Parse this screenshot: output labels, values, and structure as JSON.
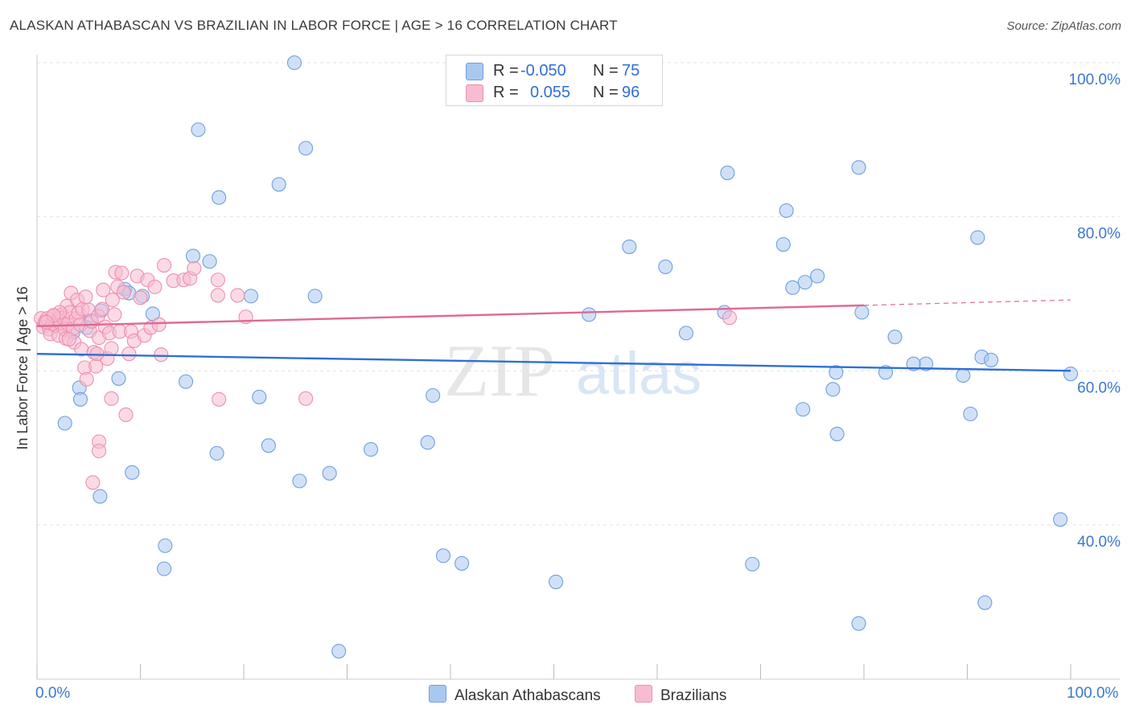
{
  "title": "ALASKAN ATHABASCAN VS BRAZILIAN IN LABOR FORCE | AGE > 16 CORRELATION CHART",
  "source": "Source: ZipAtlas.com",
  "watermark": {
    "zip": "ZIP",
    "atlas": "atlas"
  },
  "legend": {
    "rows": [
      {
        "r_label": "R =",
        "r_value": "-0.050",
        "n_label": "N =",
        "n_value": "75",
        "color": "#a9c8f0"
      },
      {
        "r_label": "R =",
        "r_value": "0.055",
        "n_label": "N =",
        "n_value": "96",
        "color": "#f7bcd0"
      }
    ]
  },
  "bottom_legend": [
    {
      "label": "Alaskan Athabascans",
      "color": "#a9c8f0"
    },
    {
      "label": "Brazilians",
      "color": "#f7bcd0"
    }
  ],
  "chart_data": {
    "type": "scatter",
    "title": "ALASKAN ATHABASCAN VS BRAZILIAN IN LABOR FORCE | AGE > 16 CORRELATION CHART",
    "xlabel": "",
    "ylabel": "In Labor Force | Age > 16",
    "xlim": [
      0,
      100
    ],
    "ylim": [
      20,
      102
    ],
    "x_tick_labels": [
      "0.0%",
      "100.0%"
    ],
    "y_ticks": [
      40,
      60,
      80,
      100
    ],
    "y_tick_labels": [
      "40.0%",
      "60.0%",
      "80.0%",
      "100.0%"
    ],
    "grid": true,
    "series": [
      {
        "name": "Alaskan Athabascans",
        "color": "#a9c8f0",
        "stroke": "#6fa0df",
        "line_color": "#2f6fd6",
        "trend": {
          "x0": 0,
          "y0": 62.2,
          "x1": 100,
          "y1": 60.0
        },
        "points": [
          [
            24.9,
            100.0
          ],
          [
            15.6,
            91.3
          ],
          [
            26.0,
            88.9
          ],
          [
            17.6,
            82.5
          ],
          [
            23.4,
            84.2
          ],
          [
            66.8,
            85.7
          ],
          [
            79.5,
            86.4
          ],
          [
            72.5,
            80.8
          ],
          [
            91.0,
            77.3
          ],
          [
            57.3,
            76.1
          ],
          [
            72.2,
            76.4
          ],
          [
            15.1,
            74.9
          ],
          [
            16.7,
            74.2
          ],
          [
            60.8,
            73.5
          ],
          [
            75.5,
            72.3
          ],
          [
            74.3,
            71.5
          ],
          [
            73.1,
            70.8
          ],
          [
            8.5,
            70.6
          ],
          [
            8.9,
            70.1
          ],
          [
            10.2,
            69.7
          ],
          [
            20.7,
            69.7
          ],
          [
            26.9,
            69.7
          ],
          [
            6.2,
            67.8
          ],
          [
            11.2,
            67.4
          ],
          [
            66.5,
            67.6
          ],
          [
            79.8,
            67.6
          ],
          [
            53.4,
            67.3
          ],
          [
            5.2,
            66.5
          ],
          [
            4.8,
            65.6
          ],
          [
            3.5,
            65.0
          ],
          [
            62.8,
            64.9
          ],
          [
            83.0,
            64.4
          ],
          [
            91.4,
            61.8
          ],
          [
            92.3,
            61.4
          ],
          [
            86.0,
            60.9
          ],
          [
            84.8,
            60.9
          ],
          [
            77.3,
            59.8
          ],
          [
            82.1,
            59.8
          ],
          [
            89.6,
            59.4
          ],
          [
            100.0,
            59.6
          ],
          [
            7.9,
            59.0
          ],
          [
            14.4,
            58.6
          ],
          [
            4.1,
            57.8
          ],
          [
            77.0,
            57.6
          ],
          [
            4.2,
            56.3
          ],
          [
            21.5,
            56.6
          ],
          [
            38.3,
            56.8
          ],
          [
            74.1,
            55.0
          ],
          [
            90.3,
            54.4
          ],
          [
            2.7,
            53.2
          ],
          [
            77.4,
            51.8
          ],
          [
            37.8,
            50.7
          ],
          [
            22.4,
            50.3
          ],
          [
            32.3,
            49.8
          ],
          [
            17.4,
            49.3
          ],
          [
            9.2,
            46.8
          ],
          [
            28.3,
            46.7
          ],
          [
            25.4,
            45.7
          ],
          [
            6.1,
            43.7
          ],
          [
            99.0,
            40.7
          ],
          [
            12.4,
            37.3
          ],
          [
            39.3,
            36.0
          ],
          [
            41.1,
            35.0
          ],
          [
            69.2,
            34.9
          ],
          [
            12.3,
            34.3
          ],
          [
            50.2,
            32.6
          ],
          [
            91.7,
            29.9
          ],
          [
            79.5,
            27.2
          ],
          [
            29.2,
            23.6
          ]
        ]
      },
      {
        "name": "Brazilians",
        "color": "#f7bcd0",
        "stroke": "#ec8fb0",
        "line_color": "#e0698f",
        "trend": {
          "x0": 0,
          "y0": 65.8,
          "x1": 80,
          "y1": 68.5
        },
        "trend_dashed": {
          "x0": 80,
          "y0": 68.5,
          "x1": 100,
          "y1": 69.2
        },
        "points": [
          [
            0.4,
            66.8
          ],
          [
            0.6,
            65.7
          ],
          [
            0.8,
            66.4
          ],
          [
            1.0,
            66.8
          ],
          [
            1.2,
            65.4
          ],
          [
            1.3,
            64.8
          ],
          [
            1.5,
            66.1
          ],
          [
            1.7,
            67.1
          ],
          [
            1.8,
            65.9
          ],
          [
            2.0,
            66.6
          ],
          [
            2.1,
            64.6
          ],
          [
            2.3,
            66.2
          ],
          [
            2.4,
            67.3
          ],
          [
            2.5,
            66.9
          ],
          [
            2.7,
            65.4
          ],
          [
            2.8,
            64.2
          ],
          [
            2.9,
            68.4
          ],
          [
            3.0,
            66.1
          ],
          [
            3.2,
            67.6
          ],
          [
            3.3,
            70.1
          ],
          [
            3.5,
            65.5
          ],
          [
            3.6,
            63.7
          ],
          [
            3.8,
            66.8
          ],
          [
            3.9,
            69.2
          ],
          [
            4.0,
            67.5
          ],
          [
            4.2,
            66.0
          ],
          [
            4.3,
            62.8
          ],
          [
            4.4,
            68.0
          ],
          [
            4.6,
            60.4
          ],
          [
            4.7,
            69.6
          ],
          [
            4.8,
            58.9
          ],
          [
            5.0,
            67.9
          ],
          [
            5.1,
            65.2
          ],
          [
            5.3,
            66.4
          ],
          [
            5.5,
            62.4
          ],
          [
            5.7,
            60.6
          ],
          [
            5.9,
            67.1
          ],
          [
            6.0,
            64.3
          ],
          [
            6.3,
            68.0
          ],
          [
            6.4,
            70.5
          ],
          [
            6.6,
            65.7
          ],
          [
            6.8,
            61.6
          ],
          [
            7.0,
            64.9
          ],
          [
            7.2,
            62.9
          ],
          [
            7.3,
            69.2
          ],
          [
            7.5,
            67.3
          ],
          [
            7.6,
            72.8
          ],
          [
            7.8,
            70.9
          ],
          [
            8.0,
            65.1
          ],
          [
            8.2,
            72.7
          ],
          [
            8.4,
            70.2
          ],
          [
            8.6,
            54.3
          ],
          [
            8.9,
            62.2
          ],
          [
            9.1,
            65.1
          ],
          [
            9.4,
            63.9
          ],
          [
            9.7,
            72.3
          ],
          [
            10.0,
            69.5
          ],
          [
            10.4,
            64.6
          ],
          [
            10.7,
            71.8
          ],
          [
            11.0,
            65.6
          ],
          [
            11.4,
            70.9
          ],
          [
            11.8,
            66.0
          ],
          [
            12.0,
            62.1
          ],
          [
            12.3,
            73.7
          ],
          [
            13.2,
            71.7
          ],
          [
            14.2,
            71.8
          ],
          [
            14.8,
            72.0
          ],
          [
            15.2,
            73.3
          ],
          [
            17.5,
            71.8
          ],
          [
            17.5,
            69.8
          ],
          [
            19.4,
            69.8
          ],
          [
            20.2,
            67.0
          ],
          [
            17.6,
            56.3
          ],
          [
            26.0,
            56.4
          ],
          [
            7.2,
            56.4
          ],
          [
            6.0,
            50.8
          ],
          [
            6.0,
            49.6
          ],
          [
            5.4,
            45.5
          ],
          [
            5.8,
            62.2
          ],
          [
            3.1,
            64.1
          ],
          [
            2.2,
            67.6
          ],
          [
            1.6,
            67.2
          ],
          [
            0.9,
            66.3
          ],
          [
            67.0,
            66.9
          ]
        ]
      }
    ]
  }
}
